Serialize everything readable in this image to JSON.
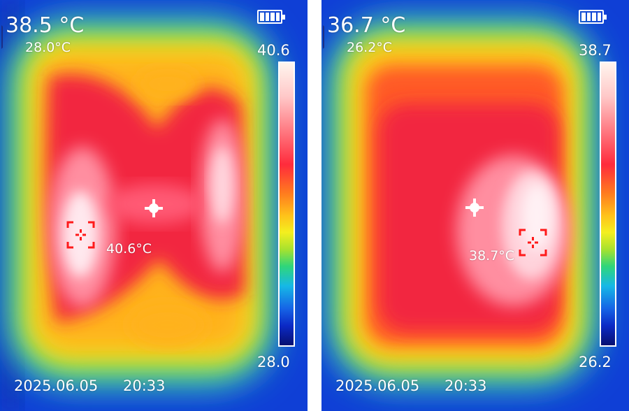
{
  "panels": [
    {
      "center_temp": "38.5 °C",
      "min_temp": "28.0°C",
      "scale_max": "40.6",
      "scale_min": "28.0",
      "spot_temp": "40.6°C",
      "date": "2025.06.05",
      "time": "20:33"
    },
    {
      "center_temp": "36.7 °C",
      "min_temp": "26.2°C",
      "scale_max": "38.7",
      "scale_min": "26.2",
      "spot_temp": "38.7°C",
      "date": "2025.06.05",
      "time": "20:33"
    }
  ],
  "icons": {
    "battery": "battery-icon",
    "center_crosshair": "crosshair-icon",
    "hotspot_marker": "hotspot-marker-icon"
  },
  "colors": {
    "background": "#0f3fd6",
    "hotspot_marker": "#ff1a1a",
    "text": "#ffffff"
  }
}
